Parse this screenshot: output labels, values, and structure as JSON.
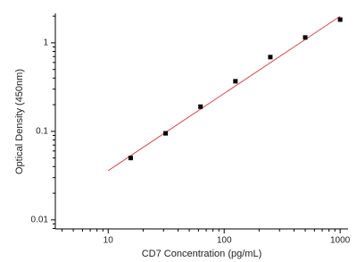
{
  "chart_data": {
    "type": "scatter",
    "xlabel": "CD7 Concentration (pg/mL)",
    "ylabel": "Optical Density (450nm)",
    "x": [
      15.625,
      31.25,
      62.5,
      125,
      250,
      500,
      1000
    ],
    "values": [
      0.05,
      0.095,
      0.19,
      0.368,
      0.69,
      1.15,
      1.83
    ],
    "color": "#000000",
    "fit": {
      "x": [
        10,
        1000
      ],
      "values": [
        0.036,
        2.0
      ],
      "color": "#d04a4a"
    },
    "xscale": "log",
    "yscale": "log",
    "xlim": [
      3.5,
      1170
    ],
    "ylim": [
      0.0079,
      2.15
    ],
    "xticks": [
      10,
      100,
      1000
    ],
    "yticks": [
      0.01,
      0.1,
      1
    ]
  }
}
